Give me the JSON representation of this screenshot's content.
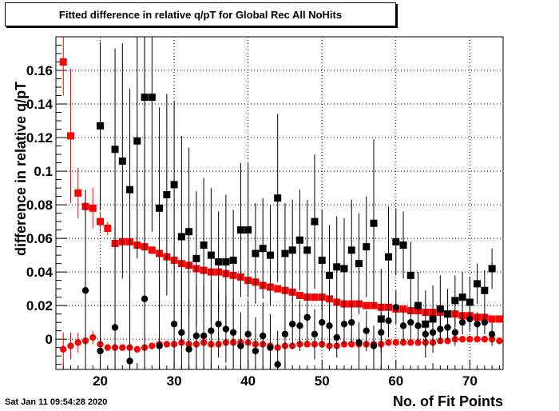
{
  "chart_data": {
    "type": "scatter",
    "title": "Fitted difference in relative q/pT  for Global Rec All NoHits",
    "xlabel": "No. of Fit Points",
    "ylabel": "difference in relative q/pT",
    "xlim": [
      14,
      74.5
    ],
    "ylim": [
      -0.018,
      0.18
    ],
    "grid": true,
    "x_ticks": [
      20,
      30,
      40,
      50,
      60,
      70
    ],
    "y_ticks": [
      0,
      0.02,
      0.04,
      0.06,
      0.08,
      0.1,
      0.12,
      0.14,
      0.16
    ],
    "series": [
      {
        "marker": "square",
        "color": "#ff0000",
        "x": [
          15,
          16,
          17,
          18,
          19,
          20,
          21,
          22,
          23,
          24,
          25,
          26,
          27,
          28,
          29,
          30,
          31,
          32,
          33,
          34,
          35,
          36,
          37,
          38,
          39,
          40,
          41,
          42,
          43,
          44,
          45,
          46,
          47,
          48,
          49,
          50,
          51,
          52,
          53,
          54,
          55,
          56,
          57,
          58,
          59,
          60,
          61,
          62,
          63,
          64,
          65,
          66,
          67,
          68,
          69,
          70,
          71,
          72,
          73,
          74
        ],
        "y": [
          0.165,
          0.121,
          0.087,
          0.079,
          0.078,
          0.07,
          0.066,
          0.057,
          0.058,
          0.058,
          0.056,
          0.055,
          0.053,
          0.051,
          0.049,
          0.047,
          0.045,
          0.044,
          0.042,
          0.041,
          0.04,
          0.04,
          0.039,
          0.038,
          0.037,
          0.035,
          0.034,
          0.032,
          0.031,
          0.03,
          0.029,
          0.028,
          0.026,
          0.025,
          0.025,
          0.025,
          0.024,
          0.022,
          0.021,
          0.021,
          0.021,
          0.02,
          0.02,
          0.019,
          0.019,
          0.018,
          0.018,
          0.017,
          0.017,
          0.016,
          0.016,
          0.016,
          0.015,
          0.015,
          0.014,
          0.014,
          0.013,
          0.013,
          0.012,
          0.012
        ],
        "err": [
          0.02,
          0.04,
          0.015,
          0.008,
          0.012,
          0.006,
          0.004,
          0.003,
          0.002,
          0.002,
          0.002,
          0.002,
          0.002,
          0.002,
          0.002,
          0.001,
          0.001,
          0.001,
          0.001,
          0.001,
          0.001,
          0.001,
          0.001,
          0.001,
          0.001,
          0.001,
          0.001,
          0.001,
          0.001,
          0.001,
          0.001,
          0.001,
          0.001,
          0.001,
          0.001,
          0.001,
          0.001,
          0.001,
          0.001,
          0.001,
          0.001,
          0.001,
          0.001,
          0.001,
          0.001,
          0.001,
          0.001,
          0.001,
          0.001,
          0.001,
          0.001,
          0.001,
          0.001,
          0.001,
          0.001,
          0.001,
          0.001,
          0.001,
          0.001,
          0.001
        ]
      },
      {
        "marker": "circle",
        "color": "#ff0000",
        "x": [
          15,
          16,
          17,
          18,
          19,
          20,
          21,
          22,
          23,
          24,
          25,
          26,
          27,
          28,
          29,
          30,
          31,
          32,
          33,
          34,
          35,
          36,
          37,
          38,
          39,
          40,
          41,
          42,
          43,
          44,
          45,
          46,
          47,
          48,
          49,
          50,
          51,
          52,
          53,
          54,
          55,
          56,
          57,
          58,
          59,
          60,
          61,
          62,
          63,
          64,
          65,
          66,
          67,
          68,
          69,
          70,
          71,
          72,
          73,
          74
        ],
        "y": [
          -0.006,
          -0.004,
          -0.002,
          -0.001,
          0.001,
          -0.003,
          -0.005,
          -0.005,
          -0.005,
          -0.005,
          -0.006,
          -0.005,
          -0.004,
          -0.003,
          -0.003,
          -0.003,
          -0.002,
          -0.003,
          -0.003,
          -0.002,
          -0.003,
          -0.003,
          -0.002,
          -0.002,
          -0.002,
          -0.002,
          -0.003,
          -0.003,
          -0.004,
          -0.005,
          -0.004,
          -0.004,
          -0.003,
          -0.003,
          -0.003,
          -0.003,
          -0.004,
          -0.004,
          -0.003,
          -0.003,
          -0.003,
          -0.003,
          -0.003,
          -0.003,
          -0.002,
          -0.002,
          -0.002,
          -0.002,
          -0.002,
          -0.002,
          -0.002,
          -0.001,
          -0.001,
          0.0,
          0.0,
          0.0,
          0.0,
          0.0,
          0.0,
          -0.001
        ],
        "err": [
          0.01,
          0.008,
          0.006,
          0.004,
          0.004,
          0.003,
          0.002,
          0.001,
          0.001,
          0.001,
          0.001,
          0.001,
          0.001,
          0.001,
          0.001,
          0.001,
          0.001,
          0.001,
          0.001,
          0.001,
          0.001,
          0.001,
          0.001,
          0.001,
          0.001,
          0.001,
          0.001,
          0.001,
          0.001,
          0.001,
          0.001,
          0.001,
          0.001,
          0.001,
          0.001,
          0.001,
          0.001,
          0.001,
          0.001,
          0.001,
          0.001,
          0.001,
          0.001,
          0.001,
          0.001,
          0.001,
          0.001,
          0.001,
          0.001,
          0.001,
          0.001,
          0.001,
          0.001,
          0.001,
          0.001,
          0.001,
          0.001,
          0.001,
          0.001,
          0.001
        ]
      },
      {
        "marker": "square",
        "color": "#000000",
        "x": [
          20,
          22,
          23,
          24,
          25,
          26,
          27,
          28,
          29,
          30,
          31,
          32,
          33,
          34,
          35,
          36,
          37,
          38,
          39,
          40,
          41,
          42,
          43,
          44,
          45,
          46,
          47,
          48,
          49,
          50,
          51,
          52,
          53,
          54,
          55,
          56,
          57,
          58,
          59,
          60,
          61,
          62,
          63,
          64,
          65,
          66,
          67,
          68,
          69,
          70,
          71,
          72,
          73
        ],
        "y": [
          0.127,
          0.113,
          0.106,
          0.089,
          0.118,
          0.144,
          0.144,
          0.078,
          0.086,
          0.092,
          0.061,
          0.064,
          0.048,
          0.056,
          0.05,
          0.046,
          0.046,
          0.047,
          0.065,
          0.065,
          0.051,
          0.054,
          0.05,
          0.084,
          0.051,
          0.053,
          0.059,
          0.053,
          0.07,
          0.047,
          0.038,
          0.043,
          0.042,
          0.053,
          0.045,
          0.055,
          0.069,
          0.012,
          0.049,
          0.058,
          0.056,
          0.038,
          0.02,
          0.009,
          0.012,
          0.018,
          0.015,
          0.023,
          0.025,
          0.022,
          0.033,
          0.029,
          0.042
        ],
        "err": [
          0.05,
          0.06,
          0.07,
          0.06,
          0.07,
          0.08,
          0.08,
          0.06,
          0.06,
          0.05,
          0.06,
          0.05,
          0.04,
          0.04,
          0.04,
          0.03,
          0.04,
          0.03,
          0.04,
          0.04,
          0.03,
          0.03,
          0.03,
          0.05,
          0.03,
          0.03,
          0.03,
          0.03,
          0.04,
          0.03,
          0.03,
          0.03,
          0.03,
          0.03,
          0.03,
          0.03,
          0.05,
          0.03,
          0.03,
          0.02,
          0.02,
          0.02,
          0.02,
          0.02,
          0.02,
          0.02,
          0.015,
          0.015,
          0.015,
          0.015,
          0.012,
          0.012,
          0.012
        ]
      },
      {
        "marker": "circle",
        "color": "#000000",
        "x": [
          18,
          20,
          22,
          24,
          26,
          28,
          30,
          31,
          32,
          33,
          34,
          35,
          36,
          37,
          38,
          39,
          40,
          41,
          42,
          43,
          44,
          45,
          46,
          47,
          48,
          49,
          50,
          51,
          52,
          53,
          54,
          55,
          56,
          57,
          58,
          59,
          60,
          61,
          62,
          63,
          64,
          65,
          66,
          67,
          68,
          69,
          70,
          71,
          72,
          73
        ],
        "y": [
          0.029,
          -0.007,
          0.007,
          -0.013,
          0.024,
          -0.004,
          0.009,
          0.004,
          -0.006,
          0.002,
          0.002,
          0.005,
          0.009,
          0.006,
          0.004,
          -0.004,
          0.003,
          -0.007,
          0.002,
          -0.005,
          -0.015,
          0.003,
          0.009,
          0.008,
          0.013,
          0.003,
          0.01,
          0.008,
          0.001,
          0.009,
          0.01,
          -0.002,
          0.005,
          -0.004,
          0.004,
          0.011,
          0.019,
          0.008,
          0.01,
          0.008,
          0.003,
          0.004,
          0.006,
          0.007,
          0.004,
          0.01,
          0.012,
          0.009,
          0.01,
          0.003
        ],
        "err": [
          0.06,
          0.05,
          0.06,
          0.05,
          0.06,
          0.04,
          0.04,
          0.035,
          0.03,
          0.03,
          0.03,
          0.03,
          0.02,
          0.02,
          0.02,
          0.02,
          0.02,
          0.02,
          0.02,
          0.02,
          0.02,
          0.02,
          0.015,
          0.015,
          0.015,
          0.015,
          0.015,
          0.015,
          0.012,
          0.012,
          0.012,
          0.012,
          0.012,
          0.012,
          0.012,
          0.01,
          0.01,
          0.01,
          0.01,
          0.01,
          0.008,
          0.008,
          0.008,
          0.008,
          0.008,
          0.007,
          0.007,
          0.007,
          0.007,
          0.007
        ]
      }
    ]
  },
  "timestamp": "Sat Jan 11 09:54:28 2020"
}
